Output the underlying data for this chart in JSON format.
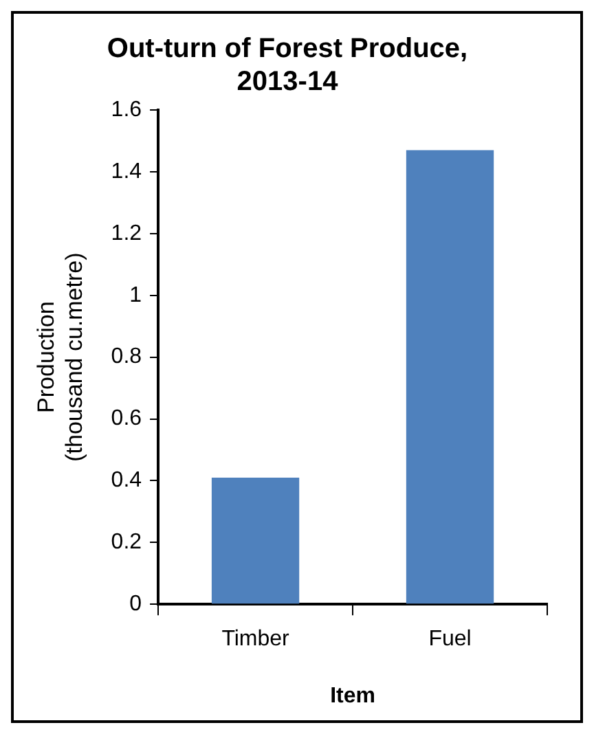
{
  "chart_data": {
    "type": "bar",
    "title": "Out-turn of Forest Produce, 2013-14",
    "xlabel": "Item",
    "ylabel": "Production (thousand cu.metre)",
    "categories": [
      "Timber",
      "Fuel"
    ],
    "values": [
      0.41,
      1.47
    ],
    "color": "#4f81bd",
    "ylim": [
      0,
      1.6
    ],
    "yticks": [
      0,
      0.2,
      0.4,
      0.6,
      0.8,
      1,
      1.2,
      1.4,
      1.6
    ],
    "grid": false,
    "legend": false
  }
}
